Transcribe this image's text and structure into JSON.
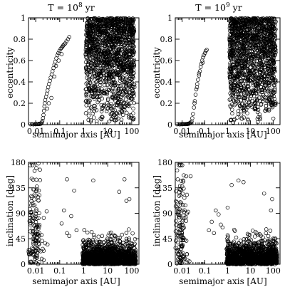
{
  "chart_data": [
    {
      "type": "scatter",
      "title": "T = 10^8 yr",
      "title_main": "T = 10",
      "title_exp": "8",
      "title_unit": "yr",
      "xlabel": "semimajor axis  [AU]",
      "ylabel": "eccentricity",
      "xscale": "log",
      "xlim": [
        0.005,
        200
      ],
      "ylim": [
        0,
        1
      ],
      "xticks": [
        0.01,
        0.1,
        1,
        10,
        100
      ],
      "xtick_labels": [
        "0.01",
        "0.1",
        "1",
        "10",
        "100"
      ],
      "yticks": [
        0,
        0.2,
        0.4,
        0.6,
        0.8,
        1
      ],
      "ytick_labels": [
        "0",
        "0.2",
        "0.4",
        "0.6",
        "0.8",
        "1"
      ],
      "grid": false,
      "marker": "open-circle",
      "series": [
        {
          "points": [
            [
              0.006,
              0.003
            ],
            [
              0.007,
              0.004
            ],
            [
              0.008,
              0.002
            ],
            [
              0.009,
              0.005
            ],
            [
              0.01,
              0.003
            ],
            [
              0.011,
              0.006
            ],
            [
              0.012,
              0.004
            ],
            [
              0.013,
              0.008
            ],
            [
              0.014,
              0.005
            ],
            [
              0.015,
              0.01
            ],
            [
              0.016,
              0.007
            ],
            [
              0.017,
              0.012
            ],
            [
              0.018,
              0.02
            ],
            [
              0.019,
              0.035
            ],
            [
              0.02,
              0.06
            ],
            [
              0.021,
              0.09
            ],
            [
              0.022,
              0.13
            ],
            [
              0.023,
              0.17
            ],
            [
              0.024,
              0.2
            ],
            [
              0.025,
              0.23
            ],
            [
              0.027,
              0.26
            ],
            [
              0.029,
              0.29
            ],
            [
              0.031,
              0.32
            ],
            [
              0.033,
              0.35
            ],
            [
              0.036,
              0.38
            ],
            [
              0.039,
              0.41
            ],
            [
              0.042,
              0.44
            ],
            [
              0.046,
              0.47
            ],
            [
              0.05,
              0.5
            ],
            [
              0.055,
              0.53
            ],
            [
              0.06,
              0.56
            ],
            [
              0.066,
              0.59
            ],
            [
              0.072,
              0.62
            ],
            [
              0.08,
              0.65
            ],
            [
              0.088,
              0.67
            ],
            [
              0.097,
              0.69
            ],
            [
              0.11,
              0.71
            ],
            [
              0.12,
              0.72
            ],
            [
              0.13,
              0.73
            ],
            [
              0.14,
              0.74
            ],
            [
              0.15,
              0.75
            ],
            [
              0.17,
              0.76
            ],
            [
              0.19,
              0.78
            ],
            [
              0.22,
              0.8
            ],
            [
              0.25,
              0.82
            ],
            [
              0.03,
              0.15
            ],
            [
              0.035,
              0.2
            ],
            [
              0.045,
              0.25
            ],
            [
              0.06,
              0.45
            ],
            [
              0.07,
              0.55
            ],
            [
              0.09,
              0.6
            ],
            [
              0.12,
              0.66
            ]
          ]
        }
      ]
    },
    {
      "type": "scatter",
      "title": "T = 10^9 yr",
      "title_main": "T = 10",
      "title_exp": "9",
      "title_unit": "yr",
      "xlabel": "semimajor axis  [AU]",
      "ylabel": "eccentricity",
      "xscale": "log",
      "xlim": [
        0.005,
        200
      ],
      "ylim": [
        0,
        1
      ],
      "xticks": [
        0.01,
        0.1,
        1,
        10,
        100
      ],
      "xtick_labels": [
        "0.01",
        "0.1",
        "1",
        "10",
        "100"
      ],
      "yticks": [
        0,
        0.2,
        0.4,
        0.6,
        0.8,
        1
      ],
      "ytick_labels": [
        "0",
        "0.2",
        "0.4",
        "0.6",
        "0.8",
        "1"
      ],
      "grid": false,
      "marker": "open-circle",
      "series": [
        {
          "points": [
            [
              0.006,
              0.003
            ],
            [
              0.007,
              0.004
            ],
            [
              0.008,
              0.002
            ],
            [
              0.009,
              0.005
            ],
            [
              0.01,
              0.003
            ],
            [
              0.011,
              0.006
            ],
            [
              0.012,
              0.004
            ],
            [
              0.013,
              0.005
            ],
            [
              0.014,
              0.004
            ],
            [
              0.015,
              0.006
            ],
            [
              0.016,
              0.005
            ],
            [
              0.017,
              0.007
            ],
            [
              0.018,
              0.006
            ],
            [
              0.019,
              0.01
            ],
            [
              0.02,
              0.008
            ],
            [
              0.021,
              0.012
            ],
            [
              0.022,
              0.015
            ],
            [
              0.024,
              0.02
            ],
            [
              0.026,
              0.03
            ],
            [
              0.028,
              0.06
            ],
            [
              0.03,
              0.1
            ],
            [
              0.033,
              0.16
            ],
            [
              0.036,
              0.22
            ],
            [
              0.039,
              0.28
            ],
            [
              0.042,
              0.33
            ],
            [
              0.046,
              0.38
            ],
            [
              0.05,
              0.42
            ],
            [
              0.055,
              0.46
            ],
            [
              0.06,
              0.5
            ],
            [
              0.065,
              0.54
            ],
            [
              0.07,
              0.57
            ],
            [
              0.076,
              0.6
            ],
            [
              0.083,
              0.63
            ],
            [
              0.09,
              0.65
            ],
            [
              0.1,
              0.67
            ],
            [
              0.11,
              0.69
            ],
            [
              0.12,
              0.7
            ],
            [
              0.035,
              0.2
            ],
            [
              0.045,
              0.35
            ],
            [
              0.055,
              0.48
            ],
            [
              0.08,
              0.58
            ]
          ]
        }
      ]
    },
    {
      "type": "scatter",
      "title": "",
      "xlabel": "semimajor axis  [AU]",
      "ylabel": "inclination  [deg]",
      "ylabel_main": "inclination",
      "ylabel_unit": "[deg]",
      "xscale": "log",
      "xlim": [
        0.005,
        200
      ],
      "ylim": [
        0,
        180
      ],
      "xticks": [
        0.01,
        0.1,
        1,
        10,
        100
      ],
      "xtick_labels": [
        "0.01",
        "0.1",
        "1",
        "10",
        "100"
      ],
      "yticks": [
        0,
        45,
        90,
        135,
        180
      ],
      "ytick_labels": [
        "0",
        "45",
        "90",
        "135",
        "180"
      ],
      "grid": false,
      "marker": "open-circle",
      "series": [
        {
          "points": [
            [
              0.013,
              178
            ],
            [
              0.2,
              150
            ],
            [
              2.5,
              148
            ],
            [
              0.4,
              130
            ],
            [
              30,
              128
            ],
            [
              60,
              112
            ],
            [
              0.15,
              95
            ],
            [
              0.3,
              85
            ],
            [
              0.12,
              72
            ],
            [
              0.5,
              60
            ],
            [
              0.2,
              55
            ],
            [
              0.25,
              50
            ],
            [
              80,
              115
            ],
            [
              50,
              150
            ]
          ]
        }
      ]
    },
    {
      "type": "scatter",
      "title": "",
      "xlabel": "semimajor axis  [AU]",
      "ylabel": "inclination  [deg]",
      "ylabel_main": "inclination",
      "ylabel_unit": "[deg]",
      "xscale": "log",
      "xlim": [
        0.005,
        200
      ],
      "ylim": [
        0,
        180
      ],
      "xticks": [
        0.01,
        0.1,
        1,
        10,
        100
      ],
      "xtick_labels": [
        "0.01",
        "0.1",
        "1",
        "10",
        "100"
      ],
      "yticks": [
        0,
        45,
        90,
        135,
        180
      ],
      "ytick_labels": [
        "0",
        "45",
        "90",
        "135",
        "180"
      ],
      "grid": false,
      "marker": "open-circle",
      "series": [
        {
          "points": [
            [
              3,
              148
            ],
            [
              5,
              145
            ],
            [
              1.5,
              140
            ],
            [
              0.3,
              95
            ],
            [
              0.2,
              75
            ],
            [
              0.5,
              70
            ],
            [
              0.6,
              65
            ],
            [
              90,
              115
            ],
            [
              80,
              95
            ],
            [
              40,
              125
            ],
            [
              0.15,
              60
            ],
            [
              0.25,
              55
            ],
            [
              1,
              100
            ],
            [
              0.4,
              88
            ]
          ]
        }
      ]
    }
  ]
}
